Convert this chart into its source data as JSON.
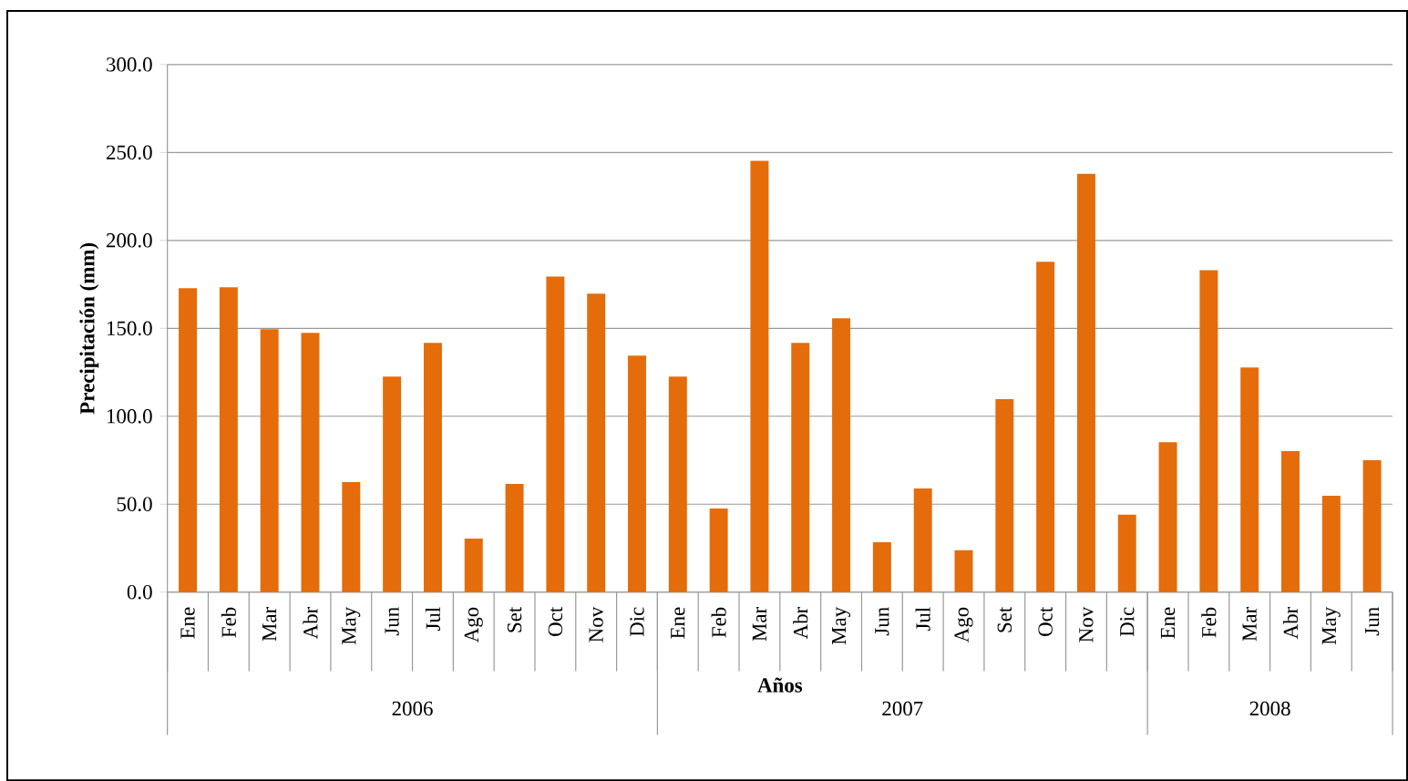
{
  "chart_data": {
    "type": "bar",
    "xlabel": "Años",
    "ylabel": "Precipitación (mm)",
    "categories": [
      "Ene",
      "Feb",
      "Mar",
      "Abr",
      "May",
      "Jun",
      "Jul",
      "Ago",
      "Set",
      "Oct",
      "Nov",
      "Dic",
      "Ene",
      "Feb",
      "Mar",
      "Abr",
      "May",
      "Jun",
      "Jul",
      "Ago",
      "Set",
      "Oct",
      "Nov",
      "Dic",
      "Ene",
      "Feb",
      "Mar",
      "Abr",
      "May",
      "Jun"
    ],
    "values": [
      172.8,
      173.3,
      149.5,
      147.4,
      62.6,
      122.6,
      141.7,
      30.5,
      61.6,
      179.5,
      169.7,
      134.5,
      122.6,
      47.6,
      245.2,
      141.7,
      155.7,
      28.4,
      59.0,
      23.8,
      109.7,
      187.8,
      237.9,
      44.0,
      85.3,
      183.1,
      127.8,
      80.2,
      54.8,
      75.0
    ],
    "color": "#e46c0a",
    "ylim": [
      0,
      300
    ],
    "yticks": [
      {
        "value": 0,
        "label": "0.0"
      },
      {
        "value": 50,
        "label": "50.0"
      },
      {
        "value": 100,
        "label": "100.0"
      },
      {
        "value": 150,
        "label": "150.0"
      },
      {
        "value": 200,
        "label": "200.0"
      },
      {
        "value": 250,
        "label": "250.0"
      },
      {
        "value": 300,
        "label": "300.0"
      }
    ],
    "grid": "y",
    "annotations": [
      "2006",
      "2007",
      "2008"
    ]
  }
}
